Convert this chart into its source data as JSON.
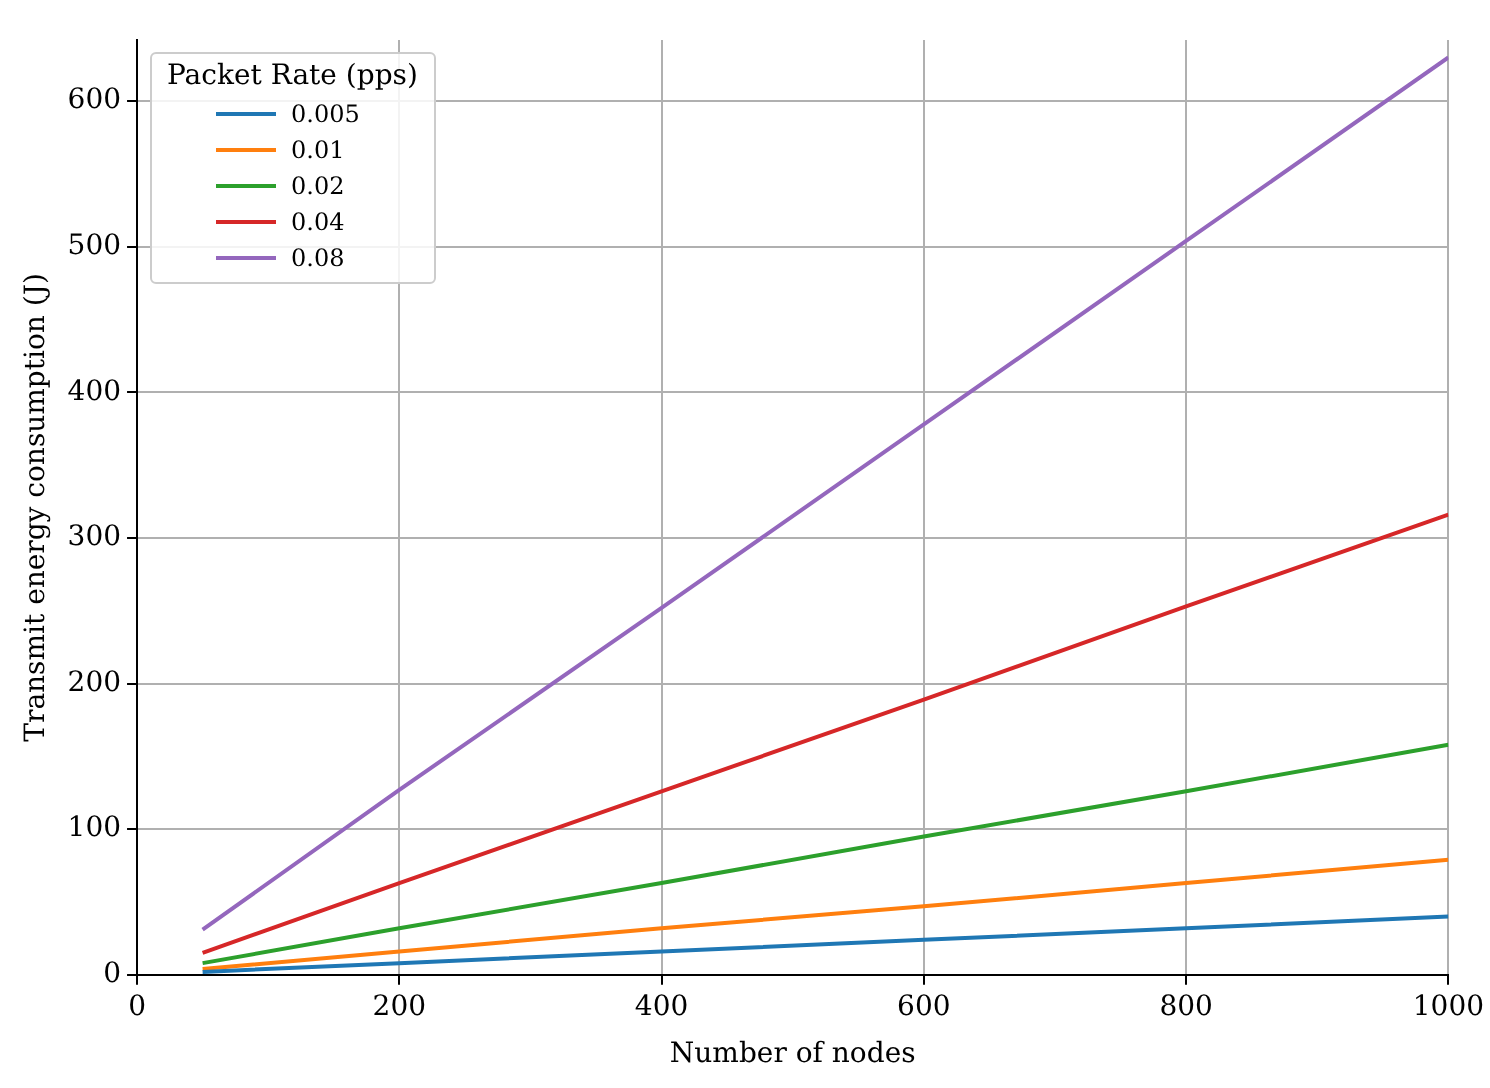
{
  "chart_data": {
    "type": "line",
    "xlabel": "Number of nodes",
    "ylabel": "Transmit energy consumption (J)",
    "legend_title": "Packet Rate (pps)",
    "legend": "top left",
    "grid": true,
    "marker": "none",
    "line_style": "solid",
    "xlim": [
      0,
      1000
    ],
    "xticks": [
      0,
      200,
      400,
      600,
      800,
      1000
    ],
    "ylim": [
      0,
      642
    ],
    "yticks": [
      0,
      100,
      200,
      300,
      400,
      500,
      600
    ],
    "x": [
      50,
      200,
      400,
      600,
      800,
      1000
    ],
    "series": [
      {
        "name": "0.005",
        "color": "#1f77b4",
        "values": [
          2,
          8,
          16,
          24,
          32,
          40
        ]
      },
      {
        "name": "0.01",
        "color": "#ff7f0e",
        "values": [
          4,
          16,
          32,
          47,
          63,
          79
        ]
      },
      {
        "name": "0.02",
        "color": "#2ca02c",
        "values": [
          8,
          32,
          63,
          95,
          126,
          158
        ]
      },
      {
        "name": "0.04",
        "color": "#d62728",
        "values": [
          15,
          63,
          126,
          189,
          253,
          316
        ]
      },
      {
        "name": "0.08",
        "color": "#9467bd",
        "values": [
          31,
          127,
          252,
          378,
          504,
          630
        ]
      }
    ]
  }
}
